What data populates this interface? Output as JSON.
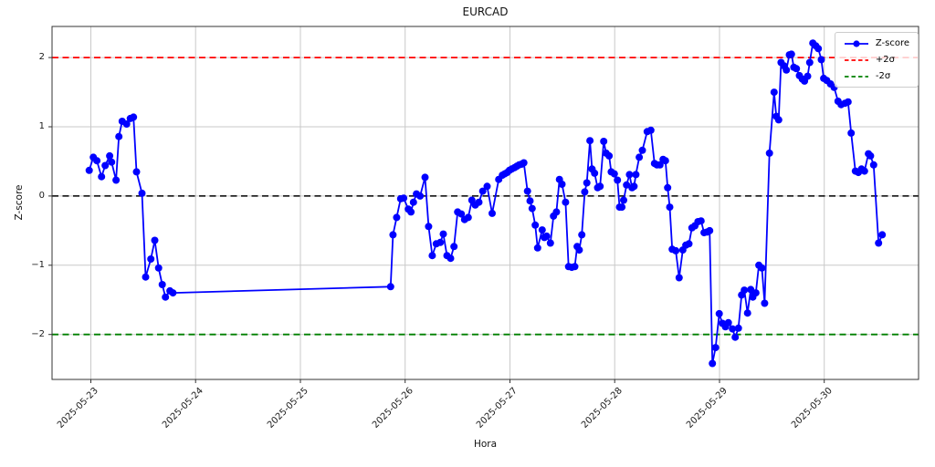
{
  "chart_data": {
    "type": "line",
    "title": "EURCAD",
    "xlabel": "Hora",
    "ylabel": "Z-score",
    "x_unit": "days since 2025-05-23 00:00",
    "xlim": [
      -0.37,
      7.9
    ],
    "ylim": [
      -2.65,
      2.45
    ],
    "grid": true,
    "legend_position": "upper right",
    "background": "#ffffff",
    "style": {
      "grid_color": "#c9c9c9",
      "spine_color": "#333333",
      "tick_label_color": "#1a1a1a"
    },
    "x_ticks": [
      {
        "t": 0,
        "label": "2025-05-23"
      },
      {
        "t": 1,
        "label": "2025-05-24"
      },
      {
        "t": 2,
        "label": "2025-05-25"
      },
      {
        "t": 3,
        "label": "2025-05-26"
      },
      {
        "t": 4,
        "label": "2025-05-27"
      },
      {
        "t": 5,
        "label": "2025-05-28"
      },
      {
        "t": 6,
        "label": "2025-05-29"
      },
      {
        "t": 7,
        "label": "2025-05-30"
      }
    ],
    "y_ticks": [
      {
        "v": 2,
        "label": "2"
      },
      {
        "v": 1,
        "label": "1"
      },
      {
        "v": 0,
        "label": "0"
      },
      {
        "v": -1,
        "label": "−1"
      },
      {
        "v": -2,
        "label": "−2"
      }
    ],
    "hlines": [
      {
        "value": 2,
        "color": "#ff0000",
        "style": "dashed",
        "name": "upper-sigma-line",
        "label": "+2σ"
      },
      {
        "value": 0,
        "color": "#000000",
        "style": "dashed",
        "name": "zero-line",
        "label": ""
      },
      {
        "value": -2,
        "color": "#008000",
        "style": "dashed",
        "name": "lower-sigma-line",
        "label": "-2σ"
      }
    ],
    "series": [
      {
        "name": "Z-score",
        "color": "#0000ff",
        "marker": "circle",
        "points": [
          [
            -0.015,
            0.37
          ],
          [
            0.024,
            0.56
          ],
          [
            0.058,
            0.51
          ],
          [
            0.102,
            0.28
          ],
          [
            0.137,
            0.44
          ],
          [
            0.18,
            0.58
          ],
          [
            0.198,
            0.49
          ],
          [
            0.241,
            0.23
          ],
          [
            0.268,
            0.86
          ],
          [
            0.299,
            1.08
          ],
          [
            0.342,
            1.04
          ],
          [
            0.377,
            1.12
          ],
          [
            0.407,
            1.14
          ],
          [
            0.436,
            0.35
          ],
          [
            0.488,
            0.04
          ],
          [
            0.523,
            -1.17
          ],
          [
            0.573,
            -0.91
          ],
          [
            0.61,
            -0.64
          ],
          [
            0.647,
            -1.04
          ],
          [
            0.682,
            -1.28
          ],
          [
            0.712,
            -1.46
          ],
          [
            0.755,
            -1.37
          ],
          [
            0.784,
            -1.4
          ],
          [
            2.861,
            -1.31
          ],
          [
            2.884,
            -0.56
          ],
          [
            2.919,
            -0.31
          ],
          [
            2.957,
            -0.04
          ],
          [
            2.986,
            -0.03
          ],
          [
            3.03,
            -0.19
          ],
          [
            3.056,
            -0.23
          ],
          [
            3.079,
            -0.09
          ],
          [
            3.108,
            0.03
          ],
          [
            3.143,
            0.0
          ],
          [
            3.19,
            0.27
          ],
          [
            3.224,
            -0.44
          ],
          [
            3.259,
            -0.86
          ],
          [
            3.297,
            -0.69
          ],
          [
            3.335,
            -0.67
          ],
          [
            3.364,
            -0.55
          ],
          [
            3.399,
            -0.86
          ],
          [
            3.434,
            -0.9
          ],
          [
            3.466,
            -0.73
          ],
          [
            3.501,
            -0.23
          ],
          [
            3.536,
            -0.26
          ],
          [
            3.567,
            -0.34
          ],
          [
            3.602,
            -0.31
          ],
          [
            3.637,
            -0.06
          ],
          [
            3.669,
            -0.13
          ],
          [
            3.704,
            -0.09
          ],
          [
            3.741,
            0.07
          ],
          [
            3.782,
            0.14
          ],
          [
            3.83,
            -0.25
          ],
          [
            3.893,
            0.24
          ],
          [
            3.928,
            0.3
          ],
          [
            3.951,
            0.32
          ],
          [
            3.974,
            0.34
          ],
          [
            3.994,
            0.37
          ],
          [
            4.017,
            0.39
          ],
          [
            4.044,
            0.41
          ],
          [
            4.065,
            0.43
          ],
          [
            4.087,
            0.45
          ],
          [
            4.111,
            0.46
          ],
          [
            4.133,
            0.48
          ],
          [
            4.168,
            0.07
          ],
          [
            4.192,
            -0.07
          ],
          [
            4.212,
            -0.18
          ],
          [
            4.242,
            -0.42
          ],
          [
            4.264,
            -0.75
          ],
          [
            4.308,
            -0.49
          ],
          [
            4.329,
            -0.6
          ],
          [
            4.351,
            -0.58
          ],
          [
            4.386,
            -0.68
          ],
          [
            4.416,
            -0.29
          ],
          [
            4.444,
            -0.23
          ],
          [
            4.473,
            0.24
          ],
          [
            4.497,
            0.17
          ],
          [
            4.531,
            -0.09
          ],
          [
            4.56,
            -1.02
          ],
          [
            4.59,
            -1.03
          ],
          [
            4.619,
            -1.02
          ],
          [
            4.642,
            -0.73
          ],
          [
            4.662,
            -0.78
          ],
          [
            4.686,
            -0.56
          ],
          [
            4.714,
            0.06
          ],
          [
            4.734,
            0.19
          ],
          [
            4.764,
            0.8
          ],
          [
            4.784,
            0.39
          ],
          [
            4.808,
            0.33
          ],
          [
            4.837,
            0.12
          ],
          [
            4.86,
            0.14
          ],
          [
            4.895,
            0.79
          ],
          [
            4.918,
            0.62
          ],
          [
            4.947,
            0.58
          ],
          [
            4.967,
            0.35
          ],
          [
            4.996,
            0.32
          ],
          [
            5.026,
            0.23
          ],
          [
            5.046,
            -0.16
          ],
          [
            5.069,
            -0.16
          ],
          [
            5.085,
            -0.06
          ],
          [
            5.113,
            0.16
          ],
          [
            5.141,
            0.31
          ],
          [
            5.165,
            0.12
          ],
          [
            5.185,
            0.14
          ],
          [
            5.202,
            0.31
          ],
          [
            5.234,
            0.56
          ],
          [
            5.264,
            0.66
          ],
          [
            5.31,
            0.93
          ],
          [
            5.345,
            0.95
          ],
          [
            5.38,
            0.47
          ],
          [
            5.403,
            0.45
          ],
          [
            5.432,
            0.45
          ],
          [
            5.462,
            0.53
          ],
          [
            5.484,
            0.51
          ],
          [
            5.505,
            0.12
          ],
          [
            5.525,
            -0.16
          ],
          [
            5.549,
            -0.77
          ],
          [
            5.583,
            -0.79
          ],
          [
            5.615,
            -1.18
          ],
          [
            5.65,
            -0.78
          ],
          [
            5.679,
            -0.71
          ],
          [
            5.708,
            -0.69
          ],
          [
            5.737,
            -0.46
          ],
          [
            5.766,
            -0.43
          ],
          [
            5.795,
            -0.37
          ],
          [
            5.824,
            -0.36
          ],
          [
            5.853,
            -0.53
          ],
          [
            5.882,
            -0.52
          ],
          [
            5.906,
            -0.5
          ],
          [
            5.932,
            -2.42
          ],
          [
            5.963,
            -2.19
          ],
          [
            5.998,
            -1.7
          ],
          [
            6.028,
            -1.84
          ],
          [
            6.057,
            -1.89
          ],
          [
            6.085,
            -1.83
          ],
          [
            6.124,
            -1.92
          ],
          [
            6.15,
            -2.04
          ],
          [
            6.181,
            -1.91
          ],
          [
            6.211,
            -1.43
          ],
          [
            6.237,
            -1.36
          ],
          [
            6.268,
            -1.69
          ],
          [
            6.298,
            -1.35
          ],
          [
            6.318,
            -1.46
          ],
          [
            6.347,
            -1.4
          ],
          [
            6.376,
            -1.0
          ],
          [
            6.405,
            -1.04
          ],
          [
            6.431,
            -1.55
          ],
          [
            6.477,
            0.62
          ],
          [
            6.521,
            1.5
          ],
          [
            6.542,
            1.15
          ],
          [
            6.565,
            1.1
          ],
          [
            6.588,
            1.93
          ],
          [
            6.617,
            1.88
          ],
          [
            6.638,
            1.82
          ],
          [
            6.667,
            2.04
          ],
          [
            6.687,
            2.05
          ],
          [
            6.71,
            1.86
          ],
          [
            6.734,
            1.84
          ],
          [
            6.763,
            1.74
          ],
          [
            6.791,
            1.69
          ],
          [
            6.812,
            1.66
          ],
          [
            6.841,
            1.73
          ],
          [
            6.861,
            1.93
          ],
          [
            6.891,
            2.21
          ],
          [
            6.919,
            2.17
          ],
          [
            6.943,
            2.13
          ],
          [
            6.972,
            1.97
          ],
          [
            6.995,
            1.7
          ],
          [
            7.024,
            1.67
          ],
          [
            7.059,
            1.62
          ],
          [
            7.094,
            1.57
          ],
          [
            7.131,
            1.37
          ],
          [
            7.161,
            1.32
          ],
          [
            7.198,
            1.34
          ],
          [
            7.227,
            1.36
          ],
          [
            7.257,
            0.91
          ],
          [
            7.297,
            0.36
          ],
          [
            7.326,
            0.34
          ],
          [
            7.355,
            0.39
          ],
          [
            7.384,
            0.36
          ],
          [
            7.422,
            0.61
          ],
          [
            7.442,
            0.58
          ],
          [
            7.471,
            0.45
          ],
          [
            7.518,
            -0.68
          ],
          [
            7.553,
            -0.56
          ]
        ]
      }
    ]
  },
  "legend": {
    "items": [
      {
        "label": "Z-score",
        "color": "#0000ff",
        "style": "solid-marker"
      },
      {
        "label": "+2σ",
        "color": "#ff0000",
        "style": "dashed"
      },
      {
        "label": "-2σ",
        "color": "#008000",
        "style": "dashed"
      }
    ]
  }
}
